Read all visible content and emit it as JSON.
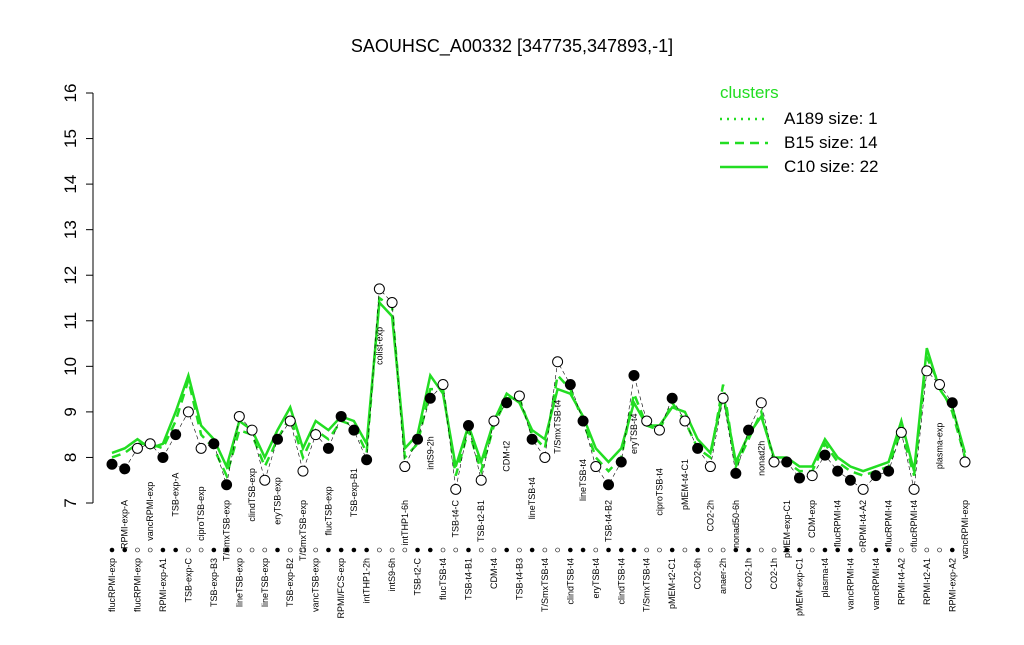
{
  "chart_data": {
    "type": "line",
    "title": "SAOUHSC_A00332 [347735,347893,-1]",
    "categories": [
      "flucRPMI-exp",
      "RPMI-exp-A",
      "flucRPMI-exp",
      "vancRPMI-exp",
      "RPMI-exp-A1",
      "TSB-exp-A",
      "TSB-exp-C",
      "ciproTSB-exp",
      "TSB-exp-B3",
      "T/SmxTSB-exp",
      "lineTSB-exp",
      "clindTSB-exp",
      "lineTSB-exp",
      "eryTSB-exp",
      "TSB-exp-B2",
      "T/SmxTSB-exp",
      "vancTSB-exp",
      "flucTSB-exp",
      "RPMI/FCS-exp",
      "TSB-exp-B1",
      "intTHP1-2h",
      "colist-exp",
      "intS9-6h",
      "intTHP1-6h",
      "TSB-t2-C",
      "intS9-2h",
      "flucTSB-t4",
      "TSB-t4-C",
      "TSB-t4-B1",
      "TSB-t2-B1",
      "CDM-t4",
      "CDM-t2",
      "TSB-t4-B3",
      "lineTSB-t4",
      "T/SmxTSB-t4",
      "T/SmxTSB-t4",
      "clindTSB-t4",
      "lineTSB-t4",
      "eryTSB-t4",
      "TSB-t4-B2",
      "clindTSB-t4",
      "eryTSB-t4",
      "T/SmxTSB-t4",
      "ciproTSB-t4",
      "pMEM-t2-C1",
      "pMEM-t4-C1",
      "CO2-6h",
      "CO2-2h",
      "anaer-2h",
      "nonad50-6h",
      "CO2-1h",
      "nonad2h",
      "CO2-1h",
      "pMEM-exp-C1",
      "pMEM-exp-C1",
      "CDM-exp",
      "plasma-t4",
      "flucRPMI-t4",
      "vancRPMI-t4",
      "RPMI-t4-A2",
      "vancRPMI-t4",
      "flucRPMI-t4",
      "RPMI-t4-A2",
      "flucRPMI-t4",
      "RPMI-t2-A1",
      "plasma-exp",
      "RPMI-exp-A2",
      "vancRPMI-exp"
    ],
    "values": [
      7.85,
      7.75,
      8.2,
      8.3,
      8.0,
      8.5,
      9.0,
      8.2,
      8.3,
      7.4,
      8.9,
      8.6,
      7.5,
      8.4,
      8.8,
      7.7,
      8.5,
      8.2,
      8.9,
      8.6,
      7.95,
      11.7,
      11.4,
      7.8,
      8.4,
      9.3,
      9.6,
      7.3,
      8.7,
      7.5,
      8.8,
      9.2,
      9.35,
      8.4,
      8.0,
      10.1,
      9.6,
      8.8,
      7.8,
      7.4,
      7.9,
      9.8,
      8.8,
      8.6,
      9.3,
      8.8,
      8.2,
      7.8,
      9.3,
      7.65,
      8.6,
      9.2,
      7.9,
      7.9,
      7.55,
      7.6,
      8.05,
      7.7,
      7.5,
      7.3,
      7.6,
      7.7,
      8.55,
      7.3,
      9.9,
      9.6,
      9.2,
      7.9
    ],
    "filled": [
      true,
      true,
      false,
      false,
      true,
      true,
      false,
      false,
      true,
      true,
      false,
      false,
      false,
      true,
      false,
      false,
      false,
      true,
      true,
      true,
      true,
      false,
      false,
      false,
      true,
      true,
      false,
      false,
      true,
      false,
      false,
      true,
      false,
      true,
      false,
      false,
      true,
      true,
      false,
      true,
      true,
      true,
      false,
      false,
      true,
      false,
      true,
      false,
      false,
      true,
      true,
      false,
      false,
      true,
      true,
      false,
      true,
      true,
      true,
      false,
      true,
      true,
      false,
      false,
      false,
      false,
      true,
      false
    ],
    "series": [
      {
        "name": "A189 size: 1",
        "color": "#22dd22",
        "dash": "dotted",
        "values": [
          null,
          null,
          null,
          null,
          null,
          null,
          null,
          null,
          null,
          null,
          null,
          null,
          null,
          null,
          null,
          null,
          null,
          null,
          null,
          null,
          null,
          null,
          null,
          null,
          null,
          null,
          null,
          null,
          null,
          null,
          null,
          null,
          null,
          null,
          null,
          null,
          null,
          null,
          null,
          null,
          null,
          null,
          null,
          null,
          null,
          null,
          null,
          null,
          null,
          null,
          null,
          null,
          null,
          null,
          null,
          null,
          null,
          null,
          null,
          null,
          null,
          null,
          null,
          null,
          null,
          null,
          null,
          null
        ]
      },
      {
        "name": "B15 size: 14",
        "color": "#22dd22",
        "dash": "dashed",
        "values": [
          8.0,
          8.1,
          8.3,
          8.3,
          8.2,
          8.8,
          9.7,
          8.5,
          8.2,
          7.6,
          8.6,
          8.5,
          7.8,
          8.4,
          8.9,
          8.0,
          8.6,
          8.4,
          8.8,
          8.7,
          8.1,
          11.5,
          11.3,
          8.0,
          8.3,
          9.5,
          9.5,
          7.6,
          8.6,
          7.7,
          8.7,
          9.3,
          9.3,
          8.5,
          8.2,
          9.8,
          9.5,
          8.8,
          8.0,
          7.7,
          8.0,
          9.4,
          8.7,
          8.6,
          9.2,
          8.8,
          8.2,
          8.0,
          9.6,
          7.8,
          8.4,
          9.0,
          7.9,
          7.9,
          7.7,
          7.7,
          8.3,
          7.9,
          7.7,
          7.6,
          7.7,
          7.8,
          8.6,
          7.6,
          10.2,
          9.6,
          9.0,
          8.0
        ]
      },
      {
        "name": "C10 size: 22",
        "color": "#22dd22",
        "dash": "solid",
        "values": [
          8.1,
          8.2,
          8.4,
          8.2,
          8.3,
          9.0,
          9.8,
          8.7,
          8.4,
          7.8,
          8.8,
          8.6,
          8.0,
          8.6,
          9.1,
          8.2,
          8.8,
          8.6,
          8.9,
          8.8,
          8.3,
          11.4,
          11.1,
          8.2,
          8.5,
          9.8,
          9.4,
          7.8,
          8.7,
          7.9,
          8.8,
          9.4,
          9.2,
          8.6,
          8.4,
          9.5,
          9.4,
          8.9,
          8.2,
          7.9,
          8.2,
          9.2,
          8.7,
          8.7,
          9.1,
          9.0,
          8.4,
          8.1,
          9.4,
          7.9,
          8.5,
          8.9,
          8.0,
          8.0,
          7.8,
          7.8,
          8.4,
          8.0,
          7.8,
          7.7,
          7.8,
          7.9,
          8.8,
          7.7,
          10.4,
          9.5,
          9.1,
          8.1
        ]
      }
    ],
    "legend_title": "clusters",
    "legend": "top-right",
    "ylim": [
      7,
      16
    ],
    "yticks": [
      7,
      8,
      9,
      10,
      11,
      12,
      13,
      14,
      15,
      16
    ]
  }
}
